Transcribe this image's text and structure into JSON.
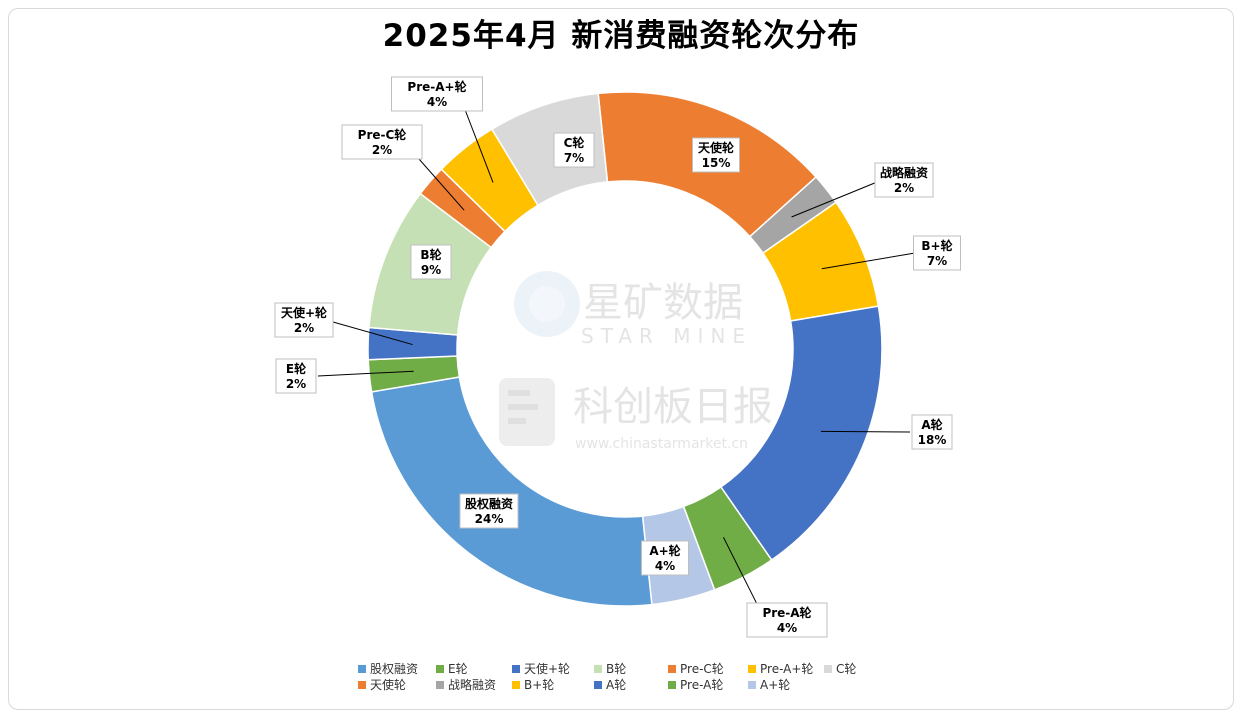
{
  "chart_data": {
    "type": "pie",
    "title": "2025年4月 新消费融资轮次分布",
    "slices": [
      {
        "label": "天使轮",
        "value": 15,
        "pct_label": "15%",
        "color": "#ED7D31"
      },
      {
        "label": "战略融资",
        "value": 2,
        "pct_label": "2%",
        "color": "#A5A5A5"
      },
      {
        "label": "B+轮",
        "value": 7,
        "pct_label": "7%",
        "color": "#FFC000"
      },
      {
        "label": "A轮",
        "value": 18,
        "pct_label": "18%",
        "color": "#4472C4"
      },
      {
        "label": "Pre-A轮",
        "value": 4,
        "pct_label": "4%",
        "color": "#70AD47"
      },
      {
        "label": "A+轮",
        "value": 4,
        "pct_label": "4%",
        "color": "#B4C7E7"
      },
      {
        "label": "股权融资",
        "value": 24,
        "pct_label": "24%",
        "color": "#5B9BD5"
      },
      {
        "label": "E轮",
        "value": 2,
        "pct_label": "2%",
        "color": "#70AD47"
      },
      {
        "label": "天使+轮",
        "value": 2,
        "pct_label": "2%",
        "color": "#4472C4"
      },
      {
        "label": "B轮",
        "value": 9,
        "pct_label": "9%",
        "color": "#C5E0B4"
      },
      {
        "label": "Pre-C轮",
        "value": 2,
        "pct_label": "2%",
        "color": "#ED7D31"
      },
      {
        "label": "Pre-A+轮",
        "value": 4,
        "pct_label": "4%",
        "color": "#FFC000"
      },
      {
        "label": "C轮",
        "value": 7,
        "pct_label": "7%",
        "color": "#D9D9D9"
      }
    ],
    "legend": {
      "placement": "bottom",
      "items": [
        {
          "label": "股权融资",
          "color": "#5B9BD5"
        },
        {
          "label": "E轮",
          "color": "#70AD47"
        },
        {
          "label": "天使+轮",
          "color": "#4472C4"
        },
        {
          "label": "B轮",
          "color": "#C5E0B4"
        },
        {
          "label": "Pre-C轮",
          "color": "#ED7D31"
        },
        {
          "label": "Pre-A+轮",
          "color": "#FFC000"
        },
        {
          "label": "C轮",
          "color": "#D9D9D9"
        },
        {
          "label": "天使轮",
          "color": "#ED7D31"
        },
        {
          "label": "战略融资",
          "color": "#A5A5A5"
        },
        {
          "label": "B+轮",
          "color": "#FFC000"
        },
        {
          "label": "A轮",
          "color": "#4472C4"
        },
        {
          "label": "Pre-A轮",
          "color": "#70AD47"
        },
        {
          "label": "A+轮",
          "color": "#B4C7E7"
        }
      ]
    }
  },
  "watermark": {
    "line1": "星矿数据",
    "line2": "STAR MINE",
    "line3": "科创板日报",
    "line4": "www.chinastarmarket.cn"
  }
}
